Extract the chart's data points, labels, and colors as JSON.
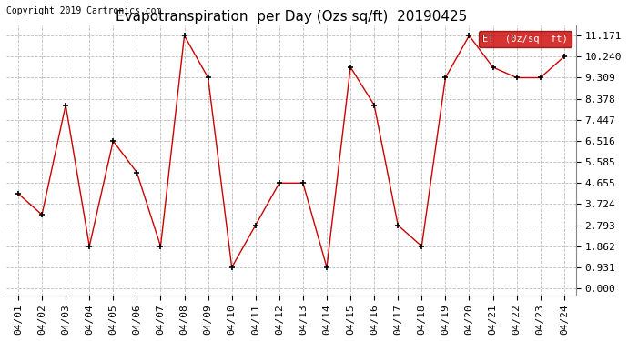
{
  "title": "Evapotranspiration  per Day (Ozs sq/ft)  20190425",
  "copyright": "Copyright 2019 Cartronics.com",
  "legend_label": "ET  (0z/sq  ft)",
  "dates": [
    "04/01",
    "04/02",
    "04/03",
    "04/04",
    "04/05",
    "04/06",
    "04/07",
    "04/08",
    "04/09",
    "04/10",
    "04/11",
    "04/12",
    "04/13",
    "04/14",
    "04/15",
    "04/16",
    "04/17",
    "04/18",
    "04/19",
    "04/20",
    "04/21",
    "04/22",
    "04/23",
    "04/24"
  ],
  "values": [
    4.189,
    3.258,
    8.099,
    1.862,
    6.516,
    5.12,
    1.862,
    11.171,
    9.309,
    0.931,
    2.793,
    4.655,
    4.655,
    0.931,
    9.775,
    8.099,
    2.793,
    1.862,
    9.309,
    11.171,
    9.775,
    9.309,
    9.309,
    10.24
  ],
  "yticks": [
    0.0,
    0.931,
    1.862,
    2.793,
    3.724,
    4.655,
    5.585,
    6.516,
    7.447,
    8.378,
    9.309,
    10.24,
    11.171
  ],
  "line_color": "#cc0000",
  "marker_color": "#000000",
  "background_color": "#ffffff",
  "grid_color": "#bbbbbb",
  "legend_bg": "#cc0000",
  "legend_text_color": "#ffffff",
  "title_fontsize": 11,
  "copyright_fontsize": 7,
  "tick_fontsize": 8,
  "ylim": [
    0.0,
    11.171
  ],
  "figwidth": 6.9,
  "figheight": 3.75,
  "dpi": 100
}
